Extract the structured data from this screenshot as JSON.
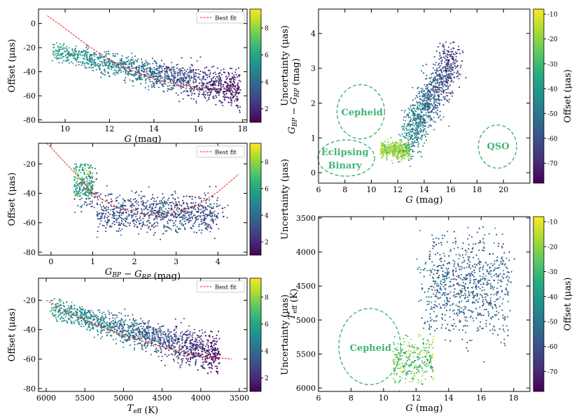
{
  "colors": {
    "viridis": [
      "#440154",
      "#472c7a",
      "#3b518b",
      "#2c718e",
      "#21908d",
      "#27ad81",
      "#5cc863",
      "#aadc32",
      "#fde725"
    ],
    "fit_line": "#e8241f",
    "annotation": "#41b477"
  },
  "chart_data": [
    {
      "id": "A",
      "type": "scatter",
      "xlabel": "G (mag)",
      "ylabel": "Offset (μas)",
      "xlim": [
        8.8,
        18.2
      ],
      "ylim": [
        -82,
        12
      ],
      "xticks": [
        10,
        12,
        14,
        16,
        18
      ],
      "yticks": [
        -80,
        -60,
        -40,
        -20,
        0
      ],
      "legend": {
        "label": "Best fit",
        "position": "top-right"
      },
      "fit_x": [
        9.2,
        10,
        11,
        12,
        13,
        14,
        15,
        16,
        17,
        17.7
      ],
      "fit_y": [
        6.5,
        -4,
        -18,
        -30,
        -39,
        -46,
        -50.5,
        -53,
        -54.5,
        -54
      ],
      "cloud": {
        "x_range": [
          9.4,
          17.9
        ],
        "ridge_y": [
          -22,
          -55
        ],
        "spread": 8
      },
      "colorbar": {
        "label": "Uncertainty (μas)",
        "range": [
          1,
          9.4
        ],
        "ticks": [
          2,
          4,
          6,
          8
        ]
      }
    },
    {
      "id": "B",
      "type": "scatter",
      "xlabel": "G_BP − G_RP (mag)",
      "ylabel": "Offset (μas)",
      "xlim": [
        -0.3,
        4.7
      ],
      "ylim": [
        -82,
        -6
      ],
      "xticks": [
        0,
        1,
        2,
        3,
        4
      ],
      "yticks": [
        -80,
        -60,
        -40,
        -20
      ],
      "legend": {
        "label": "Best fit",
        "position": "top-right"
      },
      "fit_x": [
        -0.1,
        0.3,
        0.7,
        1.0,
        1.5,
        2.0,
        2.5,
        3.0,
        3.5,
        4.0,
        4.5
      ],
      "fit_y": [
        -6,
        -18,
        -30,
        -40,
        -49,
        -53.5,
        -55,
        -53,
        -48,
        -39,
        -27
      ],
      "cloud": {
        "x_range": [
          0.5,
          4.5
        ],
        "ridge_y": [
          -30,
          -55
        ],
        "spread": 7
      },
      "colorbar": {
        "label": "Uncertainty (μas)",
        "range": [
          1,
          9.4
        ],
        "ticks": [
          2,
          4,
          6,
          8
        ]
      }
    },
    {
      "id": "C",
      "type": "scatter",
      "xlabel": "T_eff (K)",
      "ylabel": "Offset (μas)",
      "xlim": [
        6100,
        3400
      ],
      "ylim": [
        -82,
        -5
      ],
      "xticks": [
        6000,
        5500,
        5000,
        4500,
        4000,
        3500
      ],
      "yticks": [
        -80,
        -60,
        -40,
        -20
      ],
      "legend": {
        "label": "Best fit",
        "position": "top-right"
      },
      "fit_x": [
        6000,
        5600,
        5200,
        4800,
        4400,
        4000,
        3600
      ],
      "fit_y": [
        -20,
        -31,
        -40,
        -47,
        -53,
        -58,
        -60
      ],
      "cloud": {
        "x_range": [
          5950,
          3750
        ],
        "ridge_y": [
          -24,
          -57
        ],
        "spread": 7
      },
      "colorbar": {
        "label": "Uncertainty (μas)",
        "range": [
          1,
          9.4
        ],
        "ticks": [
          2,
          4,
          6,
          8
        ]
      }
    },
    {
      "id": "D",
      "type": "scatter",
      "xlabel": "G (mag)",
      "ylabel": "G_BP − G_RP (mag)",
      "xlim": [
        6,
        22
      ],
      "ylim": [
        -0.3,
        4.7
      ],
      "xticks": [
        6,
        8,
        10,
        12,
        14,
        16,
        18,
        20
      ],
      "yticks": [
        0,
        1,
        2,
        3,
        4
      ],
      "annotations": [
        {
          "label": "Cepheid",
          "x": 9.3,
          "y": 1.75
        },
        {
          "label": "Eclipsing",
          "x": 8.0,
          "y": 0.6
        },
        {
          "label": "Binary",
          "x": 8.0,
          "y": 0.22
        },
        {
          "label": "QSO",
          "x": 19.6,
          "y": 0.77
        }
      ],
      "regions": [
        {
          "x": 9.2,
          "y": 1.75,
          "rx": 1.8,
          "ry": 0.78
        },
        {
          "x": 8.1,
          "y": 0.42,
          "rx": 2.15,
          "ry": 0.52
        },
        {
          "x": 19.55,
          "y": 0.75,
          "rx": 1.45,
          "ry": 0.62
        }
      ],
      "colorbar": {
        "label": "Offset (μas)",
        "range": [
          -78,
          -8
        ],
        "ticks": [
          -70,
          -60,
          -50,
          -40,
          -30,
          -20,
          -10
        ]
      }
    },
    {
      "id": "E",
      "type": "scatter",
      "xlabel": "G (mag)",
      "ylabel": "T_eff (K)",
      "xlim": [
        6,
        19
      ],
      "ylim": [
        6050,
        3480
      ],
      "xticks": [
        6,
        8,
        10,
        12,
        14,
        16,
        18
      ],
      "yticks": [
        3500,
        4000,
        4500,
        5000,
        5500,
        6000
      ],
      "annotations": [
        {
          "label": "Cepheid",
          "x": 9.2,
          "y": 5400
        }
      ],
      "regions": [
        {
          "x": 9.15,
          "y": 5390,
          "rx": 1.9,
          "ry": 560
        }
      ],
      "colorbar": {
        "label": "Offset (μas)",
        "range": [
          -78,
          -8
        ],
        "ticks": [
          -70,
          -60,
          -50,
          -40,
          -30,
          -20,
          -10
        ]
      }
    }
  ]
}
